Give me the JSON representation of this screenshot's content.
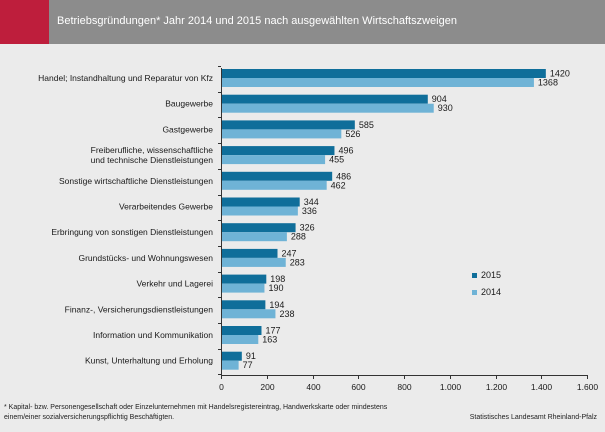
{
  "header": {
    "title": "Betriebsgründungen* Jahr 2014 und 2015  nach ausgewählten Wirtschaftszweigen"
  },
  "footnote": "* Kapital- bzw. Personengesellschaft oder Einzelunternehmen mit Handelsregistereintrag, Handwerkskarte oder mindestens einem/einer sozialversicherungspflichtig Beschäftigten.",
  "source": "Statistisches Landesamt Rheinland-Pfalz",
  "colors": {
    "header_bg": "#8c8c8c",
    "accent": "#be1e3c",
    "series_2015": "#0f6e9a",
    "series_2014": "#6fb3d6"
  },
  "chart_data": {
    "type": "bar",
    "orientation": "horizontal",
    "title": "Betriebsgründungen* Jahr 2014 und 2015  nach ausgewählten Wirtschaftszweigen",
    "categories": [
      [
        "Handel; Instandhaltung und Reparatur von Kfz"
      ],
      [
        "Baugewerbe"
      ],
      [
        "Gastgewerbe"
      ],
      [
        "Freiberufliche, wissenschaftliche",
        "und technische Dienstleistungen"
      ],
      [
        "Sonstige wirtschaftliche Dienstleistungen"
      ],
      [
        "Verarbeitendes Gewerbe"
      ],
      [
        "Erbringung von sonstigen Dienstleistungen"
      ],
      [
        "Grundstücks- und Wohnungswesen"
      ],
      [
        "Verkehr und Lagerei"
      ],
      [
        "Finanz-, Versicherungsdienstleistungen"
      ],
      [
        "Information und Kommunikation"
      ],
      [
        "Kunst, Unterhaltung und Erholung"
      ]
    ],
    "series": [
      {
        "name": "2015",
        "values": [
          1420,
          904,
          585,
          496,
          486,
          344,
          326,
          247,
          198,
          194,
          177,
          91
        ]
      },
      {
        "name": "2014",
        "values": [
          1368,
          930,
          526,
          455,
          462,
          336,
          288,
          283,
          190,
          238,
          163,
          77
        ]
      }
    ],
    "xlim": [
      0,
      1600
    ],
    "xticks": [
      0,
      200,
      400,
      600,
      800,
      1000,
      1200,
      1400,
      1600
    ],
    "xtick_labels": [
      "0",
      "200",
      "400",
      "600",
      "800",
      "1.000",
      "1.200",
      "1.400",
      "1.600"
    ],
    "legend": {
      "placement": "right",
      "items": [
        "2015",
        "2014"
      ]
    },
    "grid": false
  }
}
